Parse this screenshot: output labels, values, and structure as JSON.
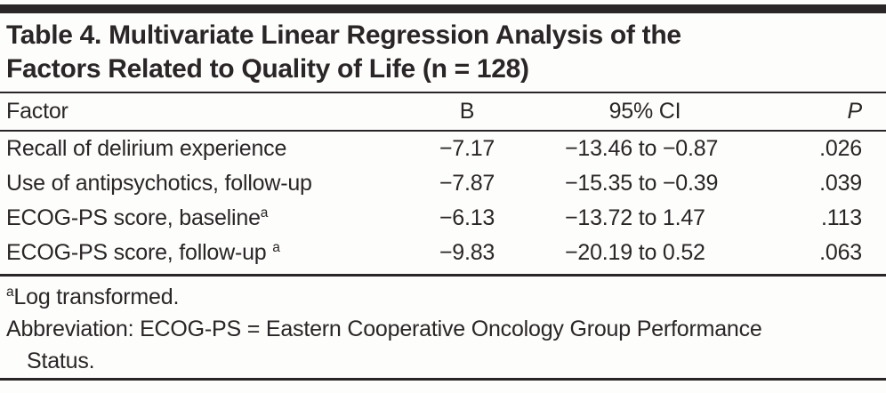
{
  "colors": {
    "ink": "#2a2526",
    "top_bar": "#2a2526",
    "background": "#fdfdfc"
  },
  "table": {
    "title_lines": [
      "Table 4. Multivariate Linear Regression Analysis of the",
      "Factors Related to Quality of Life (n = 128)"
    ],
    "columns": {
      "factor": "Factor",
      "b": "B",
      "ci": "95% CI",
      "p": "P"
    },
    "rows": [
      {
        "factor": "Recall of delirium experience",
        "sup": "",
        "b": "−7.17",
        "ci": "−13.46 to −0.87",
        "p": ".026"
      },
      {
        "factor": "Use of antipsychotics, follow-up",
        "sup": "",
        "b": "−7.87",
        "ci": "−15.35 to −0.39",
        "p": ".039"
      },
      {
        "factor": "ECOG-PS score, baseline",
        "sup": "a",
        "b": "−6.13",
        "ci": "−13.72 to 1.47",
        "p": ".113"
      },
      {
        "factor": "ECOG-PS score, follow-up ",
        "sup": "a",
        "b": "−9.83",
        "ci": "−20.19 to 0.52",
        "p": ".063"
      }
    ],
    "footnotes": {
      "a_marker": "a",
      "a_text": "Log transformed.",
      "abbreviation_lines": [
        "Abbreviation: ECOG-PS = Eastern Cooperative Oncology Group Performance",
        "Status."
      ]
    }
  }
}
